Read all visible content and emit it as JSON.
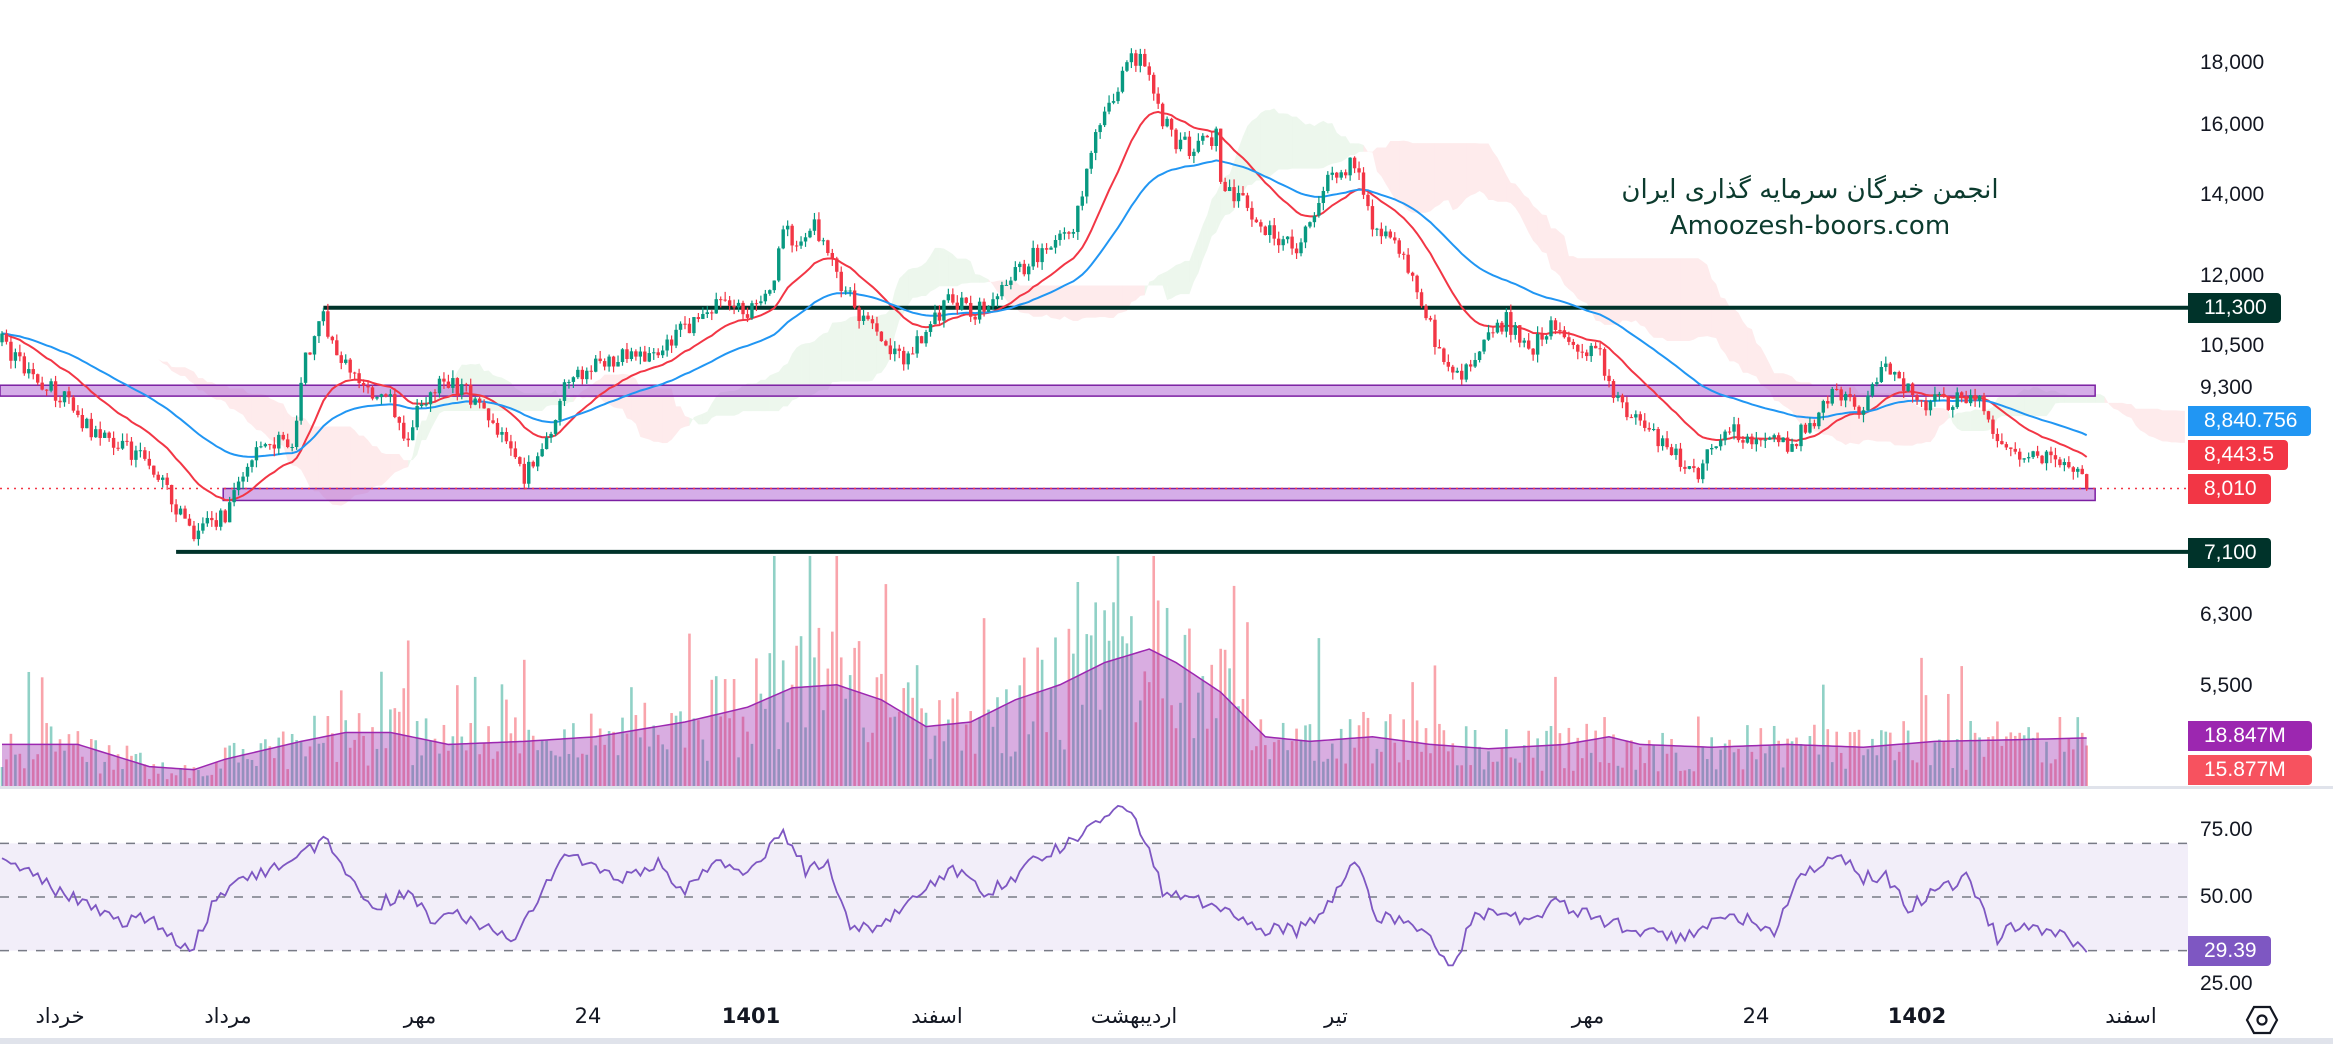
{
  "watermark": {
    "line1": "انجمن خبرگان سرمایه گذاری ایران",
    "line2": "Amoozesh-boors.com"
  },
  "price_axis": {
    "ticks": [
      "18,000",
      "16,000",
      "14,000",
      "12,000",
      "10,500",
      "9,300",
      "6,300",
      "5,500"
    ]
  },
  "price_labels": {
    "resistance": "11,300",
    "ma_blue": "8,840.756",
    "ma_red": "8,443.5",
    "last": "8,010",
    "support": "7,100",
    "vol_ma": "18.847M",
    "vol_last": "15.877M"
  },
  "rsi_axis": {
    "ticks": [
      "75.00",
      "50.00",
      "25.00"
    ],
    "value": "29.39"
  },
  "time_axis": [
    "خرداد",
    "مرداد",
    "مهر",
    "24",
    "1401",
    "اسفند",
    "اردیبهشت",
    "تیر",
    "مهر",
    "24",
    "1402",
    "اسفند"
  ],
  "colors": {
    "up": "#089981",
    "down": "#f23645",
    "ema_fast": "#f23645",
    "ema_slow": "#2196f3",
    "zone": "#b36ad6",
    "level": "#00332a",
    "vol_ma": "#9c27b0",
    "rsi": "#7e57c2"
  },
  "chart_data": {
    "type": "candlestick",
    "scale": "log",
    "bars": 468,
    "close_keypoints": [
      [
        0,
        10580
      ],
      [
        7,
        9860
      ],
      [
        13,
        9590
      ],
      [
        20,
        8930
      ],
      [
        27,
        8690
      ],
      [
        33,
        8440
      ],
      [
        40,
        7645
      ],
      [
        43,
        7320
      ],
      [
        50,
        7645
      ],
      [
        55,
        8440
      ],
      [
        60,
        8690
      ],
      [
        65,
        8800
      ],
      [
        68,
        10290
      ],
      [
        72,
        11040
      ],
      [
        77,
        10140
      ],
      [
        82,
        9590
      ],
      [
        87,
        9440
      ],
      [
        90,
        8690
      ],
      [
        93,
        9320
      ],
      [
        100,
        9860
      ],
      [
        107,
        9440
      ],
      [
        113,
        8690
      ],
      [
        117,
        8200
      ],
      [
        122,
        8800
      ],
      [
        127,
        9860
      ],
      [
        133,
        10140
      ],
      [
        140,
        10290
      ],
      [
        147,
        10290
      ],
      [
        153,
        10890
      ],
      [
        160,
        11360
      ],
      [
        167,
        11200
      ],
      [
        172,
        11510
      ],
      [
        175,
        13280
      ],
      [
        178,
        12540
      ],
      [
        182,
        13280
      ],
      [
        187,
        12030
      ],
      [
        192,
        11200
      ],
      [
        197,
        10580
      ],
      [
        202,
        10290
      ],
      [
        207,
        10730
      ],
      [
        212,
        11510
      ],
      [
        218,
        11200
      ],
      [
        223,
        11510
      ],
      [
        230,
        12380
      ],
      [
        235,
        12720
      ],
      [
        240,
        13280
      ],
      [
        245,
        15520
      ],
      [
        248,
        16650
      ],
      [
        252,
        17870
      ],
      [
        255,
        18380
      ],
      [
        257,
        17370
      ],
      [
        260,
        16180
      ],
      [
        263,
        15520
      ],
      [
        267,
        15290
      ],
      [
        272,
        15730
      ],
      [
        273,
        14250
      ],
      [
        278,
        13850
      ],
      [
        283,
        13080
      ],
      [
        290,
        12720
      ],
      [
        293,
        13280
      ],
      [
        298,
        14660
      ],
      [
        303,
        14850
      ],
      [
        307,
        13280
      ],
      [
        312,
        12720
      ],
      [
        317,
        11690
      ],
      [
        322,
        10420
      ],
      [
        327,
        9860
      ],
      [
        332,
        10730
      ],
      [
        337,
        11040
      ],
      [
        342,
        10420
      ],
      [
        347,
        10890
      ],
      [
        353,
        10420
      ],
      [
        358,
        10290
      ],
      [
        362,
        9440
      ],
      [
        367,
        9060
      ],
      [
        372,
        8690
      ],
      [
        377,
        8440
      ],
      [
        380,
        8200
      ],
      [
        383,
        8800
      ],
      [
        388,
        8930
      ],
      [
        393,
        8800
      ],
      [
        400,
        8690
      ],
      [
        405,
        9060
      ],
      [
        410,
        9590
      ],
      [
        417,
        9320
      ],
      [
        422,
        10140
      ],
      [
        425,
        9860
      ],
      [
        430,
        9440
      ],
      [
        437,
        9440
      ],
      [
        442,
        9590
      ],
      [
        445,
        9060
      ],
      [
        450,
        8550
      ],
      [
        457,
        8550
      ],
      [
        463,
        8440
      ],
      [
        467,
        8010
      ]
    ],
    "last_close": 8010,
    "horizontal_levels": [
      {
        "price": 11300,
        "from_bar": 72
      },
      {
        "price": 7100,
        "from_bar": 39
      }
    ],
    "zones": [
      {
        "low": 9550,
        "high": 9750,
        "from_bar": 0,
        "to_bar": 468
      },
      {
        "low": 7830,
        "high": 8010,
        "from_bar": 50,
        "to_bar": 468
      }
    ],
    "moving_averages": [
      {
        "name": "EMA fast",
        "period": 20,
        "last": 8443.5
      },
      {
        "name": "EMA slow",
        "period": 50,
        "last": 8840.756
      }
    ],
    "volume_ma_keypoints_M": [
      [
        0,
        16.3
      ],
      [
        17,
        16.3
      ],
      [
        33,
        7.6
      ],
      [
        43,
        6.4
      ],
      [
        50,
        10.5
      ],
      [
        67,
        17.5
      ],
      [
        77,
        21
      ],
      [
        87,
        21
      ],
      [
        100,
        16.3
      ],
      [
        117,
        17.5
      ],
      [
        133,
        19.3
      ],
      [
        143,
        22.2
      ],
      [
        153,
        25.1
      ],
      [
        167,
        30.9
      ],
      [
        177,
        38.5
      ],
      [
        187,
        39.7
      ],
      [
        197,
        33.8
      ],
      [
        207,
        23.3
      ],
      [
        217,
        25.1
      ],
      [
        227,
        33.8
      ],
      [
        237,
        39.7
      ],
      [
        247,
        48.4
      ],
      [
        257,
        53.7
      ],
      [
        263,
        48.4
      ],
      [
        273,
        36.8
      ],
      [
        283,
        19.3
      ],
      [
        293,
        17.5
      ],
      [
        307,
        19.3
      ],
      [
        320,
        16.3
      ],
      [
        333,
        14.6
      ],
      [
        350,
        16.3
      ],
      [
        360,
        19.3
      ],
      [
        367,
        16.3
      ],
      [
        383,
        15.2
      ],
      [
        400,
        16.3
      ],
      [
        417,
        15.2
      ],
      [
        433,
        17.5
      ],
      [
        450,
        18.1
      ],
      [
        467,
        18.847
      ]
    ],
    "volume_spikes_M": [
      [
        183,
        62
      ],
      [
        241,
        80
      ],
      [
        245,
        72
      ],
      [
        258,
        91
      ],
      [
        295,
        58
      ],
      [
        178,
        55
      ]
    ],
    "volume_last_M": 15.877,
    "rsi_keypoints": [
      [
        0,
        65.7
      ],
      [
        7,
        57.3
      ],
      [
        13,
        51.7
      ],
      [
        20,
        46.1
      ],
      [
        27,
        40.4
      ],
      [
        33,
        43.3
      ],
      [
        42,
        29.2
      ],
      [
        47,
        46.1
      ],
      [
        53,
        57.3
      ],
      [
        60,
        60.1
      ],
      [
        67,
        65.7
      ],
      [
        72,
        71.3
      ],
      [
        77,
        60.1
      ],
      [
        83,
        46.1
      ],
      [
        90,
        51.7
      ],
      [
        97,
        40.4
      ],
      [
        103,
        43.3
      ],
      [
        110,
        37.6
      ],
      [
        115,
        33.7
      ],
      [
        122,
        54.5
      ],
      [
        127,
        65.7
      ],
      [
        133,
        60.1
      ],
      [
        140,
        57.3
      ],
      [
        147,
        62.9
      ],
      [
        153,
        51.7
      ],
      [
        160,
        62.9
      ],
      [
        167,
        57.3
      ],
      [
        175,
        74.2
      ],
      [
        180,
        60.1
      ],
      [
        185,
        62.9
      ],
      [
        190,
        40.4
      ],
      [
        195,
        37.6
      ],
      [
        200,
        43.3
      ],
      [
        207,
        54.5
      ],
      [
        213,
        60.1
      ],
      [
        220,
        51.7
      ],
      [
        227,
        57.3
      ],
      [
        233,
        65.7
      ],
      [
        240,
        71.3
      ],
      [
        245,
        79.8
      ],
      [
        252,
        82.6
      ],
      [
        257,
        68.5
      ],
      [
        260,
        51.7
      ],
      [
        267,
        48.9
      ],
      [
        273,
        46.1
      ],
      [
        283,
        37.6
      ],
      [
        290,
        37.6
      ],
      [
        297,
        46.1
      ],
      [
        303,
        62.9
      ],
      [
        308,
        43.3
      ],
      [
        313,
        40.4
      ],
      [
        320,
        34.8
      ],
      [
        325,
        24.7
      ],
      [
        330,
        43.3
      ],
      [
        337,
        44.9
      ],
      [
        342,
        40.4
      ],
      [
        348,
        47.8
      ],
      [
        353,
        44.9
      ],
      [
        360,
        40.4
      ],
      [
        367,
        37.6
      ],
      [
        377,
        34.8
      ],
      [
        383,
        40.4
      ],
      [
        388,
        43.3
      ],
      [
        397,
        37.6
      ],
      [
        403,
        57.3
      ],
      [
        412,
        65.7
      ],
      [
        417,
        57.3
      ],
      [
        422,
        57.3
      ],
      [
        427,
        46.1
      ],
      [
        433,
        51.7
      ],
      [
        440,
        57.3
      ],
      [
        447,
        34.8
      ],
      [
        452,
        40.4
      ],
      [
        457,
        37.6
      ],
      [
        463,
        34.8
      ],
      [
        467,
        29.39
      ]
    ],
    "rsi_bands": [
      30,
      50,
      70
    ],
    "rsi_last": 29.39
  }
}
